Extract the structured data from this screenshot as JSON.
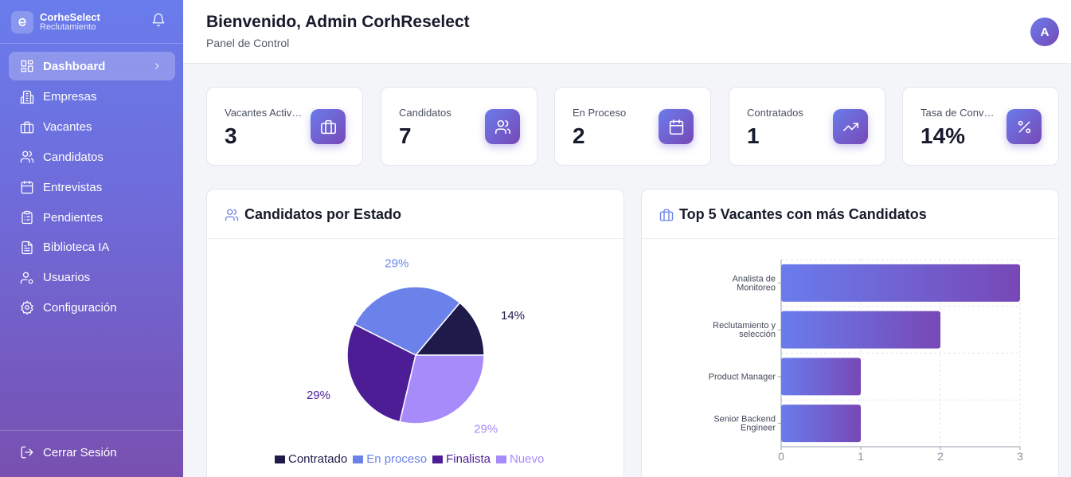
{
  "sidebar": {
    "brand_name": "CorheSelect",
    "brand_sub": "Reclutamiento",
    "items": [
      {
        "label": "Dashboard",
        "icon": "dashboard-icon"
      },
      {
        "label": "Empresas",
        "icon": "building-icon"
      },
      {
        "label": "Vacantes",
        "icon": "briefcase-icon"
      },
      {
        "label": "Candidatos",
        "icon": "users-icon"
      },
      {
        "label": "Entrevistas",
        "icon": "calendar-icon"
      },
      {
        "label": "Pendientes",
        "icon": "clipboard-icon"
      },
      {
        "label": "Biblioteca IA",
        "icon": "file-icon"
      },
      {
        "label": "Usuarios",
        "icon": "user-cog-icon"
      },
      {
        "label": "Configuración",
        "icon": "gear-icon"
      }
    ],
    "logout": "Cerrar Sesión"
  },
  "header": {
    "title": "Bienvenido, Admin CorhReselect",
    "subtitle": "Panel de Control",
    "avatar": "A"
  },
  "stats": [
    {
      "label": "Vacantes Activas",
      "value": "3",
      "icon": "briefcase-icon"
    },
    {
      "label": "Candidatos",
      "value": "7",
      "icon": "users-icon"
    },
    {
      "label": "En Proceso",
      "value": "2",
      "icon": "calendar-icon"
    },
    {
      "label": "Contratados",
      "value": "1",
      "icon": "trending-up-icon"
    },
    {
      "label": "Tasa de Conversión",
      "value": "14%",
      "icon": "percent-icon"
    }
  ],
  "pie_panel": {
    "title": "Candidatos por Estado"
  },
  "bar_panel": {
    "title": "Top 5 Vacantes con más Candidatos"
  },
  "chart_data": [
    {
      "type": "pie",
      "title": "Candidatos por Estado",
      "slices": [
        {
          "name": "Contratado",
          "value": 14,
          "label": "14%",
          "color": "#1e1b4b"
        },
        {
          "name": "En proceso",
          "value": 29,
          "label": "29%",
          "color": "#6b82ea"
        },
        {
          "name": "Finalista",
          "value": 29,
          "label": "29%",
          "color": "#4c1d95"
        },
        {
          "name": "Nuevo",
          "value": 29,
          "label": "29%",
          "color": "#a78bfa"
        }
      ],
      "legend_position": "bottom"
    },
    {
      "type": "bar",
      "orientation": "horizontal",
      "title": "Top 5 Vacantes con más Candidatos",
      "categories": [
        [
          "Analista de",
          "Monitoreo"
        ],
        [
          "Reclutamiento y",
          "selección"
        ],
        [
          "Product Manager"
        ],
        [
          "Senior Backend",
          "Engineer"
        ]
      ],
      "values": [
        3,
        2,
        1,
        1
      ],
      "xlim": [
        0,
        3
      ],
      "xticks": [
        "0",
        "1",
        "2",
        "3"
      ],
      "grid": true,
      "bar_gradient": [
        "#6a7cec",
        "#7748b6"
      ]
    }
  ]
}
